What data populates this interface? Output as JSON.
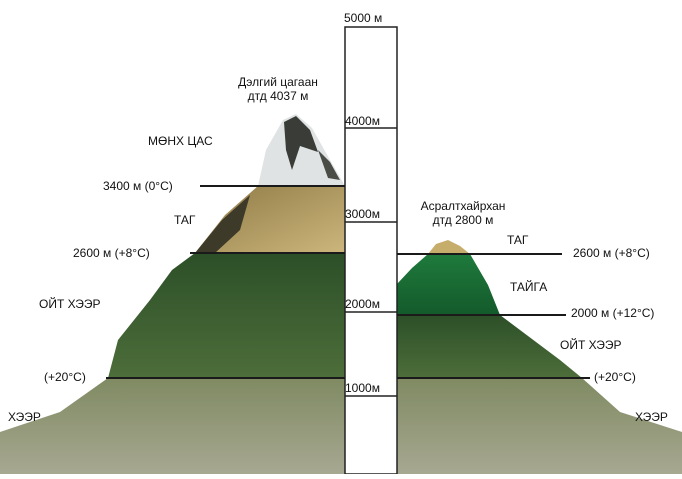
{
  "scale": {
    "top": "5000 м",
    "m4000": "4000м",
    "m3000": "3000м",
    "m2000": "2000м",
    "m1000": "1000м"
  },
  "left_mountain": {
    "name": "Дэлгий цагаан",
    "height": "дтд 4037 м",
    "zones": [
      "МӨНХ ЦАС",
      "ТАГ",
      "ОЙТ ХЭЭР",
      "ХЭЭР"
    ],
    "levels": [
      "3400 м (0°С)",
      "2600 м (+8°С)",
      "(+20°С)"
    ]
  },
  "right_mountain": {
    "name": "Асралтхайрхан",
    "height": "дтд 2800 м",
    "zones": [
      "ТАГ",
      "ТАЙГА",
      "ОЙТ ХЭЭР",
      "ХЭЭР"
    ],
    "levels": [
      "2600 м (+8°С)",
      "2000 м (+12°С)",
      "(+20°С)"
    ]
  },
  "colors": {
    "snow": "#dfe3e4",
    "rock": "#3a3c38",
    "tundra": "#b39a5c",
    "forest": "#2f5a2e",
    "taiga": "#1f6b3a",
    "steppe": "#8f9872"
  }
}
